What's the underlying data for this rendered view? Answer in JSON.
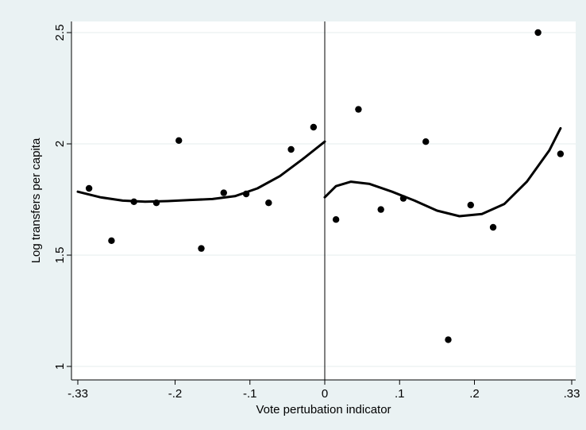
{
  "chart_data": {
    "type": "scatter",
    "title": "",
    "xlabel": "Vote pertubation indicator",
    "ylabel": "Log transfers per capita",
    "xlim": [
      -0.33,
      0.33
    ],
    "ylim": [
      1,
      2.5
    ],
    "x_ticks": [
      -0.33,
      -0.2,
      -0.1,
      0,
      0.1,
      0.2,
      0.33
    ],
    "x_tick_labels": [
      "-.33",
      "-.2",
      "-.1",
      "0",
      ".1",
      ".2",
      ".33"
    ],
    "y_ticks": [
      1,
      1.5,
      2,
      2.5
    ],
    "y_tick_labels": [
      "1",
      "1.5",
      "2",
      "2.5"
    ],
    "grid": true,
    "vertical_reference_line": 0,
    "points": [
      {
        "x": -0.315,
        "y": 1.8
      },
      {
        "x": -0.285,
        "y": 1.565
      },
      {
        "x": -0.255,
        "y": 1.74
      },
      {
        "x": -0.225,
        "y": 1.735
      },
      {
        "x": -0.195,
        "y": 2.015
      },
      {
        "x": -0.165,
        "y": 1.53
      },
      {
        "x": -0.135,
        "y": 1.78
      },
      {
        "x": -0.105,
        "y": 1.775
      },
      {
        "x": -0.075,
        "y": 1.735
      },
      {
        "x": -0.045,
        "y": 1.975
      },
      {
        "x": -0.015,
        "y": 2.075
      },
      {
        "x": 0.015,
        "y": 1.66
      },
      {
        "x": 0.045,
        "y": 2.155
      },
      {
        "x": 0.075,
        "y": 1.705
      },
      {
        "x": 0.105,
        "y": 1.755
      },
      {
        "x": 0.135,
        "y": 2.01
      },
      {
        "x": 0.165,
        "y": 1.12
      },
      {
        "x": 0.195,
        "y": 1.725
      },
      {
        "x": 0.225,
        "y": 1.625
      },
      {
        "x": 0.285,
        "y": 2.5
      },
      {
        "x": 0.315,
        "y": 1.955
      }
    ],
    "fit_left": [
      [
        -0.33,
        1.785
      ],
      [
        -0.3,
        1.76
      ],
      [
        -0.27,
        1.745
      ],
      [
        -0.24,
        1.74
      ],
      [
        -0.21,
        1.743
      ],
      [
        -0.18,
        1.748
      ],
      [
        -0.15,
        1.752
      ],
      [
        -0.12,
        1.765
      ],
      [
        -0.09,
        1.8
      ],
      [
        -0.06,
        1.855
      ],
      [
        -0.03,
        1.93
      ],
      [
        0.0,
        2.01
      ]
    ],
    "fit_right": [
      [
        0.0,
        1.76
      ],
      [
        0.015,
        1.81
      ],
      [
        0.035,
        1.83
      ],
      [
        0.06,
        1.82
      ],
      [
        0.09,
        1.785
      ],
      [
        0.12,
        1.745
      ],
      [
        0.15,
        1.7
      ],
      [
        0.18,
        1.675
      ],
      [
        0.21,
        1.685
      ],
      [
        0.24,
        1.73
      ],
      [
        0.27,
        1.83
      ],
      [
        0.3,
        1.97
      ],
      [
        0.315,
        2.07
      ]
    ]
  }
}
